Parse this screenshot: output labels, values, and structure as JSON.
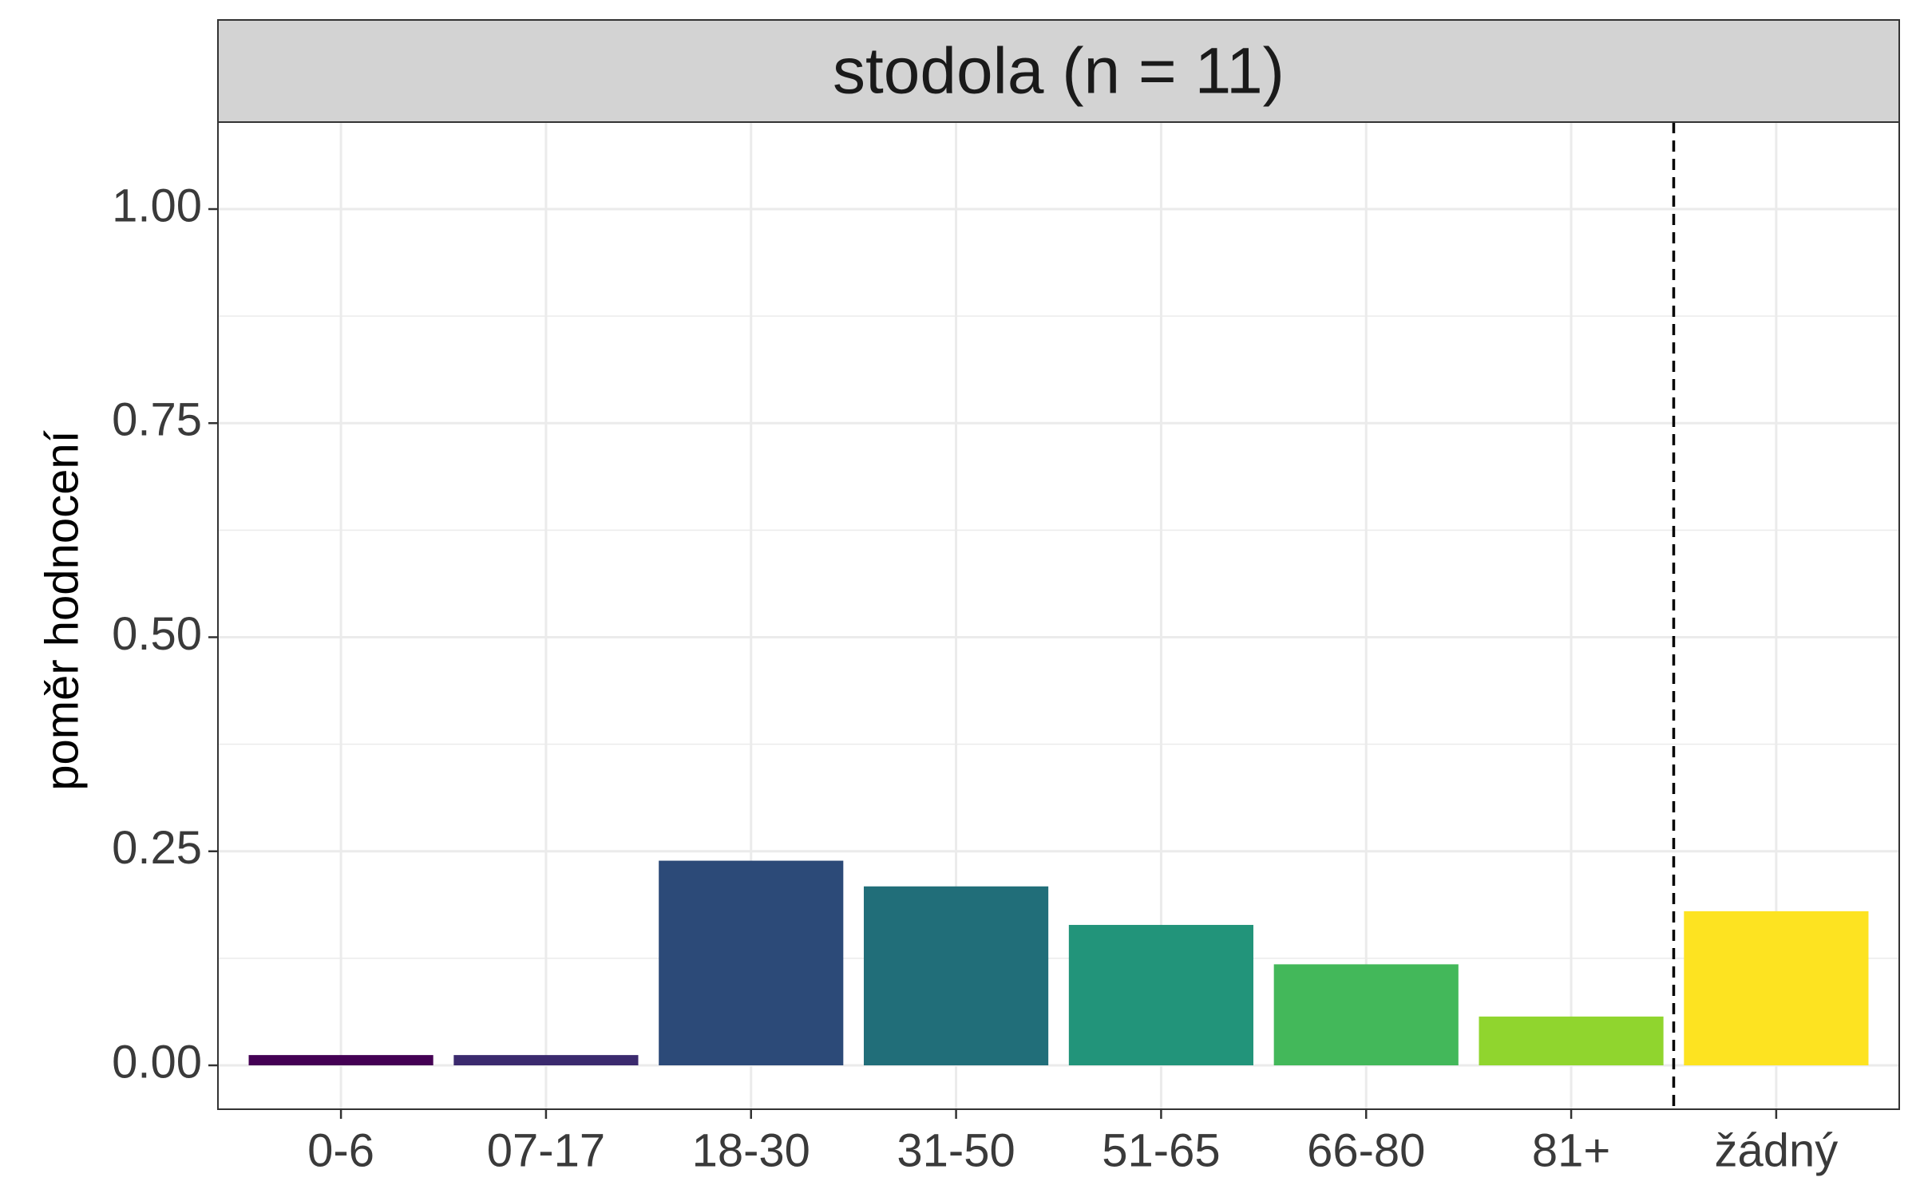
{
  "chart_data": {
    "type": "bar",
    "title": "stodola (n = 11)",
    "xlabel": "",
    "ylabel": "poměr hodnocení",
    "categories": [
      "0-6",
      "07-17",
      "18-30",
      "31-50",
      "51-65",
      "66-80",
      "81+",
      "žádný"
    ],
    "values": [
      0.012,
      0.012,
      0.239,
      0.209,
      0.164,
      0.118,
      0.057,
      0.18
    ],
    "colors": [
      "#440154",
      "#3B2A6E",
      "#2C4A78",
      "#216E79",
      "#22947A",
      "#43B85A",
      "#90D52E",
      "#FDE321"
    ],
    "ylim": [
      -0.05,
      1.1
    ],
    "yticks": [
      0.0,
      0.25,
      0.5,
      0.75,
      1.0
    ],
    "ytick_labels": [
      "0.00",
      "0.25",
      "0.50",
      "0.75",
      "1.00"
    ],
    "grid": true,
    "separator_line": {
      "style": "dashed",
      "between": [
        "81+",
        "žádný"
      ]
    }
  }
}
